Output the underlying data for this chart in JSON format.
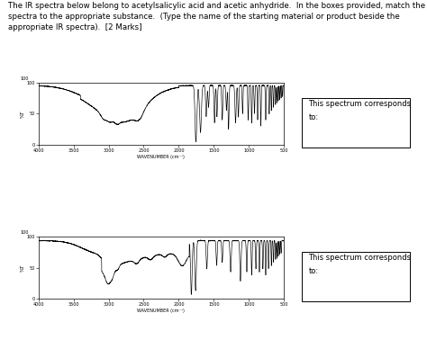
{
  "title_text": "The IR spectra below belong to acetylsalicylic acid and acetic anhydride.  In the boxes provided, match the\nspectra to the appropriate substance.  (Type the name of the starting material or product beside the\nappropriate IR spectra).  [2 Marks]",
  "box_text_line1": "This spectrum corresponds",
  "box_text_line2": "to:",
  "xaxis_label": "WAVENUMBER (cm⁻¹)",
  "yaxis_label": "%T",
  "background_color": "#ffffff",
  "plot_bg": "#ffffff",
  "line_color": "#000000",
  "box_bg": "#ffffff",
  "box_edge": "#000000"
}
